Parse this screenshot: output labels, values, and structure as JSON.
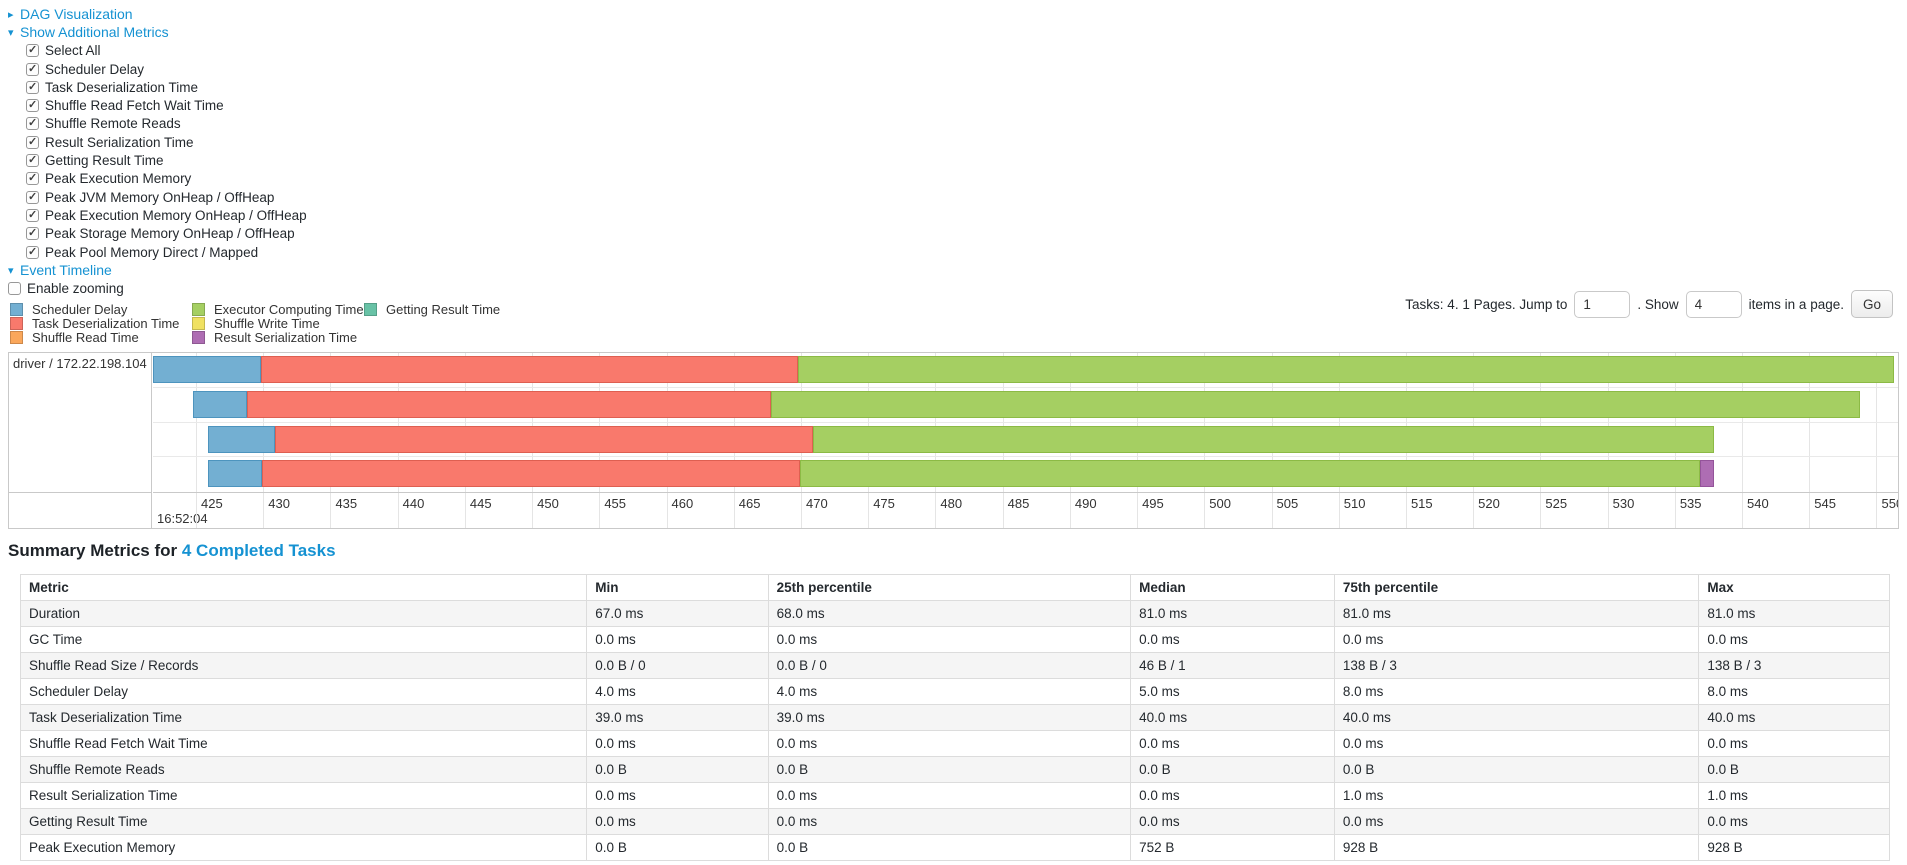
{
  "top": {
    "dag_label": "DAG Visualization",
    "metrics_toggle_label": "Show Additional Metrics",
    "checkboxes": [
      {
        "label": "Select All",
        "checked": true
      },
      {
        "label": "Scheduler Delay",
        "checked": true
      },
      {
        "label": "Task Deserialization Time",
        "checked": true
      },
      {
        "label": "Shuffle Read Fetch Wait Time",
        "checked": true
      },
      {
        "label": "Shuffle Remote Reads",
        "checked": true
      },
      {
        "label": "Result Serialization Time",
        "checked": true
      },
      {
        "label": "Getting Result Time",
        "checked": true
      },
      {
        "label": "Peak Execution Memory",
        "checked": true
      },
      {
        "label": "Peak JVM Memory OnHeap / OffHeap",
        "checked": true
      },
      {
        "label": "Peak Execution Memory OnHeap / OffHeap",
        "checked": true
      },
      {
        "label": "Peak Storage Memory OnHeap / OffHeap",
        "checked": true
      },
      {
        "label": "Peak Pool Memory Direct / Mapped",
        "checked": true
      }
    ],
    "event_timeline_label": "Event Timeline",
    "enable_zooming": {
      "label": "Enable zooming",
      "checked": false
    }
  },
  "legend": {
    "columns": [
      [
        {
          "key": "scheduler-delay",
          "label": "Scheduler Delay"
        },
        {
          "key": "task-deserialization",
          "label": "Task Deserialization Time"
        },
        {
          "key": "shuffle-read",
          "label": "Shuffle Read Time"
        }
      ],
      [
        {
          "key": "executor-computing",
          "label": "Executor Computing Time"
        },
        {
          "key": "shuffle-write",
          "label": "Shuffle Write Time"
        },
        {
          "key": "result-serialization",
          "label": "Result Serialization Time"
        }
      ],
      [
        {
          "key": "getting-result",
          "label": "Getting Result Time"
        }
      ]
    ]
  },
  "colors": {
    "scheduler-delay": {
      "fill": "#73AFD2",
      "border": "#4D94BE"
    },
    "task-deserialization": {
      "fill": "#F9796C",
      "border": "#DE5F51"
    },
    "shuffle-read": {
      "fill": "#FAA75B",
      "border": "#DE8A3E"
    },
    "executor-computing": {
      "fill": "#A5CF62",
      "border": "#8CBA45"
    },
    "shuffle-write": {
      "fill": "#F0E161",
      "border": "#D4C63E"
    },
    "result-serialization": {
      "fill": "#AE6DB3",
      "border": "#94549A"
    },
    "getting-result": {
      "fill": "#68C2A6",
      "border": "#4FA98B"
    },
    "link_blue": "#1592d2"
  },
  "pagination": {
    "tasks_text": "Tasks: 4. 1 Pages. Jump to",
    "jump_value": "1",
    "show_label": ". Show",
    "show_value": "4",
    "suffix_text": "items in a page.",
    "go_label": "Go"
  },
  "timeline": {
    "row_label": "driver / 172.22.198.104",
    "axis": {
      "min": 421.8,
      "max": 551.6,
      "tick_start": 425,
      "tick_end": 550,
      "tick_step": 5,
      "major_label": "16:52:04"
    },
    "tasks": [
      {
        "start": 421.8,
        "segments": [
          {
            "type": "scheduler-delay",
            "ms": 8
          },
          {
            "type": "task-deserialization",
            "ms": 40
          },
          {
            "type": "executor-computing",
            "ms": 81.5
          }
        ]
      },
      {
        "start": 424.8,
        "segments": [
          {
            "type": "scheduler-delay",
            "ms": 4
          },
          {
            "type": "task-deserialization",
            "ms": 39
          },
          {
            "type": "executor-computing",
            "ms": 81
          }
        ]
      },
      {
        "start": 425.9,
        "segments": [
          {
            "type": "scheduler-delay",
            "ms": 5
          },
          {
            "type": "task-deserialization",
            "ms": 40
          },
          {
            "type": "executor-computing",
            "ms": 67
          }
        ]
      },
      {
        "start": 425.9,
        "segments": [
          {
            "type": "scheduler-delay",
            "ms": 4
          },
          {
            "type": "task-deserialization",
            "ms": 40
          },
          {
            "type": "executor-computing",
            "ms": 67
          },
          {
            "type": "result-serialization",
            "ms": 1
          }
        ]
      }
    ]
  },
  "summary": {
    "title_prefix": "Summary Metrics for",
    "title_link": "4 Completed Tasks",
    "columns": [
      "Metric",
      "Min",
      "25th percentile",
      "Median",
      "75th percentile",
      "Max"
    ],
    "col_widths_pct": [
      30.3,
      9.7,
      19.4,
      10.9,
      19.5,
      10.2
    ],
    "rows": [
      {
        "metric": "Duration",
        "values": [
          "67.0 ms",
          "68.0 ms",
          "81.0 ms",
          "81.0 ms",
          "81.0 ms"
        ]
      },
      {
        "metric": "GC Time",
        "values": [
          "0.0 ms",
          "0.0 ms",
          "0.0 ms",
          "0.0 ms",
          "0.0 ms"
        ]
      },
      {
        "metric": "Shuffle Read Size / Records",
        "values": [
          "0.0 B / 0",
          "0.0 B / 0",
          "46 B / 1",
          "138 B / 3",
          "138 B / 3"
        ]
      },
      {
        "metric": "Scheduler Delay",
        "values": [
          "4.0 ms",
          "4.0 ms",
          "5.0 ms",
          "8.0 ms",
          "8.0 ms"
        ]
      },
      {
        "metric": "Task Deserialization Time",
        "values": [
          "39.0 ms",
          "39.0 ms",
          "40.0 ms",
          "40.0 ms",
          "40.0 ms"
        ]
      },
      {
        "metric": "Shuffle Read Fetch Wait Time",
        "values": [
          "0.0 ms",
          "0.0 ms",
          "0.0 ms",
          "0.0 ms",
          "0.0 ms"
        ]
      },
      {
        "metric": "Shuffle Remote Reads",
        "values": [
          "0.0 B",
          "0.0 B",
          "0.0 B",
          "0.0 B",
          "0.0 B"
        ]
      },
      {
        "metric": "Result Serialization Time",
        "values": [
          "0.0 ms",
          "0.0 ms",
          "0.0 ms",
          "1.0 ms",
          "1.0 ms"
        ]
      },
      {
        "metric": "Getting Result Time",
        "values": [
          "0.0 ms",
          "0.0 ms",
          "0.0 ms",
          "0.0 ms",
          "0.0 ms"
        ]
      },
      {
        "metric": "Peak Execution Memory",
        "values": [
          "0.0 B",
          "0.0 B",
          "752 B",
          "928 B",
          "928 B"
        ]
      }
    ]
  }
}
